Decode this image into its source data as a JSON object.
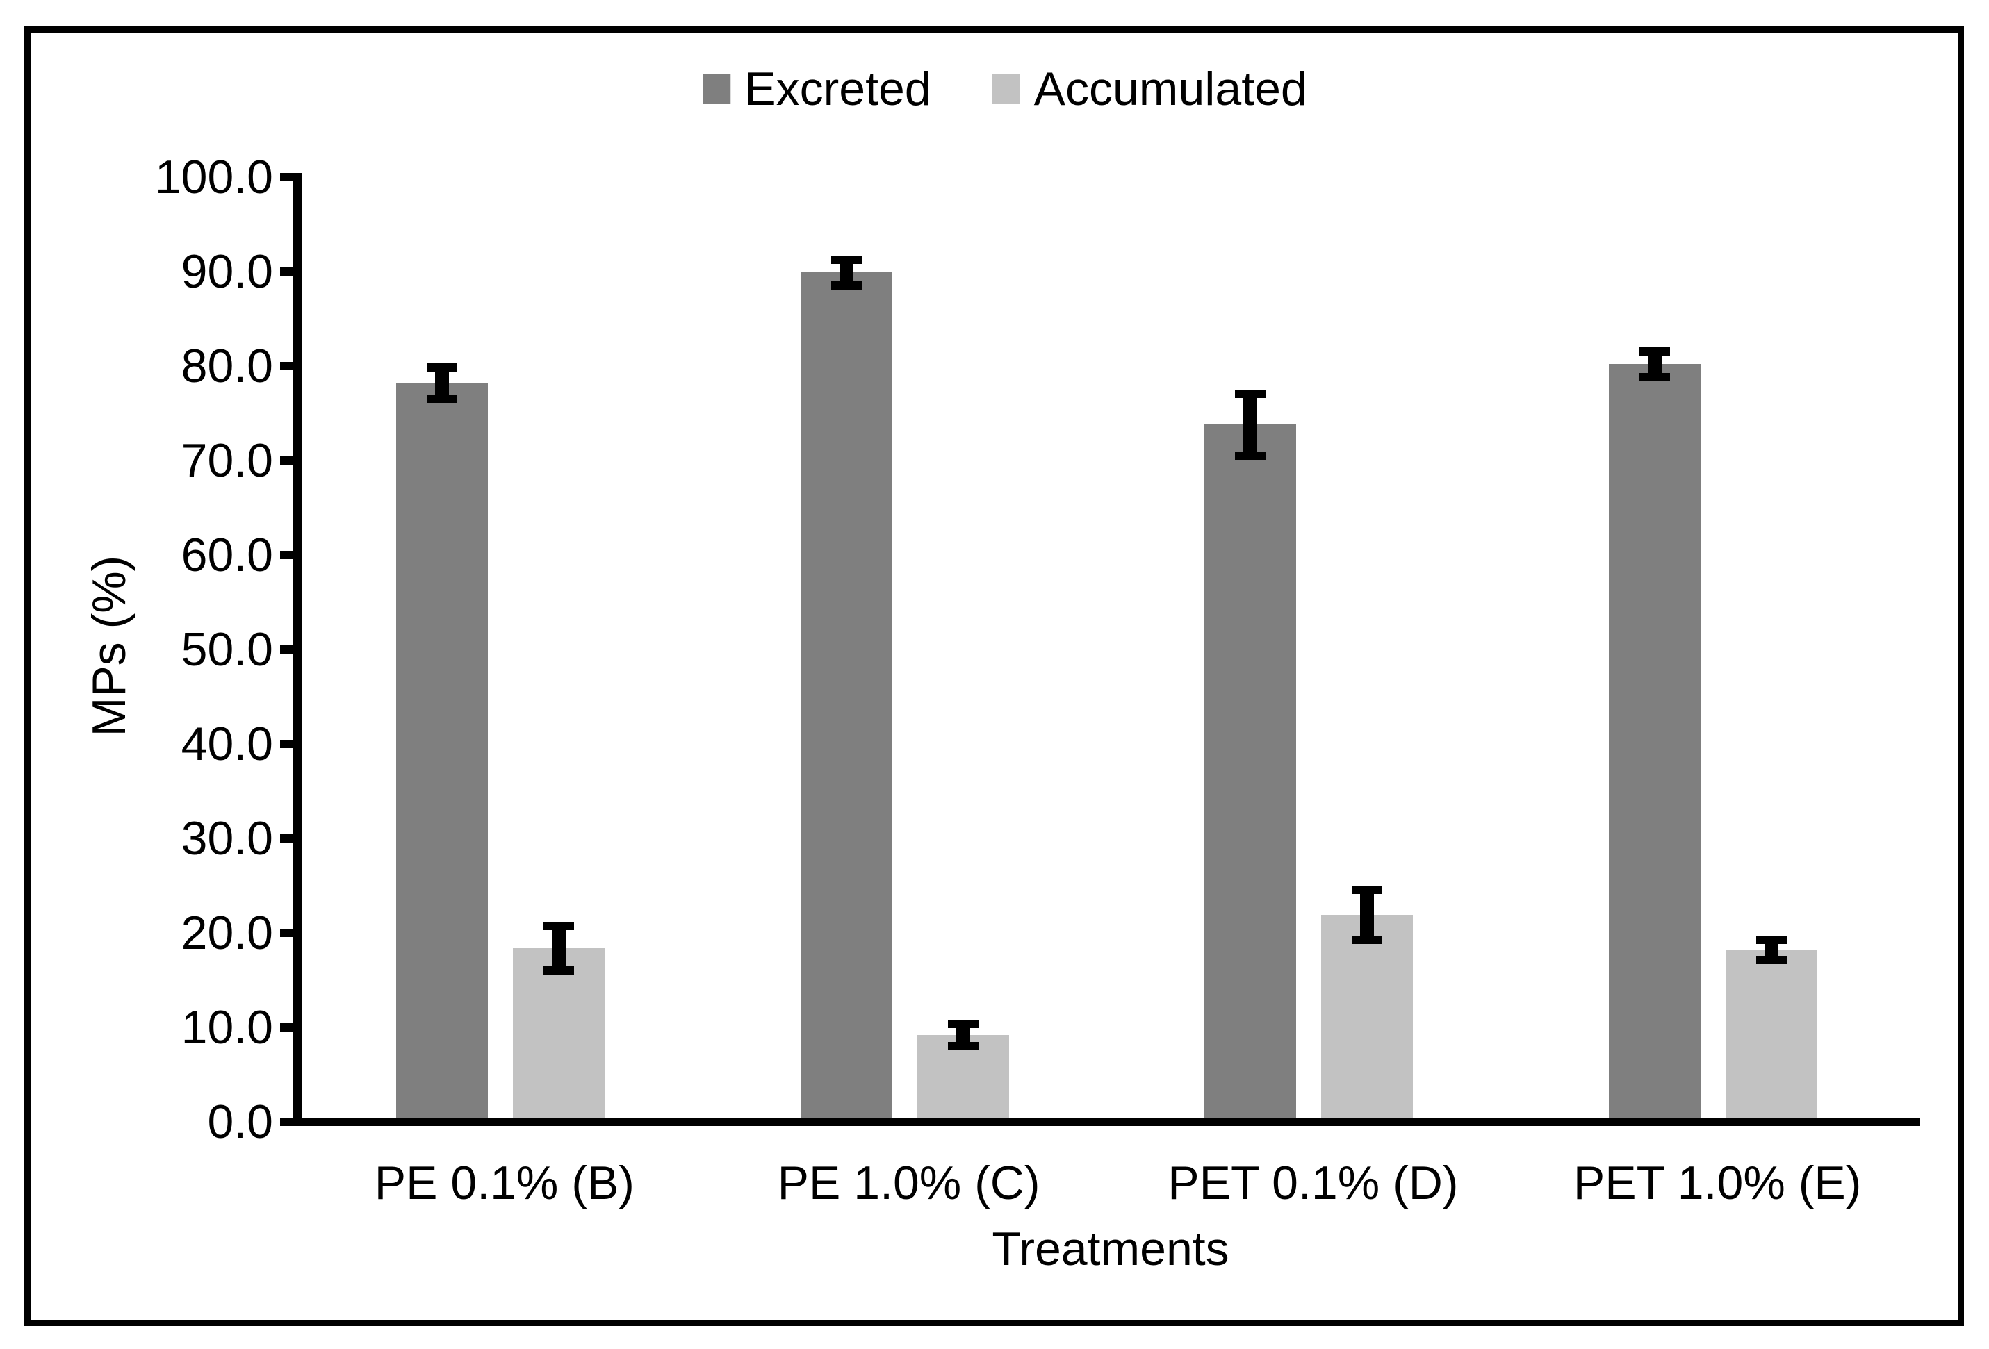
{
  "figure": {
    "background": "#FFFFFF",
    "border_color": "#000000",
    "axis_color": "#000000"
  },
  "chart_data": {
    "type": "bar",
    "title": "",
    "categories": [
      "PE 0.1% (B)",
      "PE 1.0% (C)",
      "PET 0.1% (D)",
      "PET 1.0% (E)"
    ],
    "series": [
      {
        "name": "Excreted",
        "color": "#7F7F7F",
        "values": [
          78.2,
          89.9,
          73.8,
          80.2
        ],
        "errors": [
          2.1,
          1.8,
          3.7,
          1.8
        ]
      },
      {
        "name": "Accumulated",
        "color": "#C2C2C2",
        "values": [
          18.4,
          9.2,
          21.9,
          18.2
        ],
        "errors": [
          2.8,
          1.6,
          3.1,
          1.5
        ]
      }
    ],
    "xlabel": "Treatments",
    "ylabel": "MPs (%)",
    "ylim": [
      0,
      100
    ],
    "ytick_step": 10,
    "ytick_labels": [
      "0.0",
      "10.0",
      "20.0",
      "30.0",
      "40.0",
      "50.0",
      "60.0",
      "70.0",
      "80.0",
      "90.0",
      "100.0"
    ],
    "error_bars": true,
    "legend_position": "top-center",
    "grid": false
  }
}
